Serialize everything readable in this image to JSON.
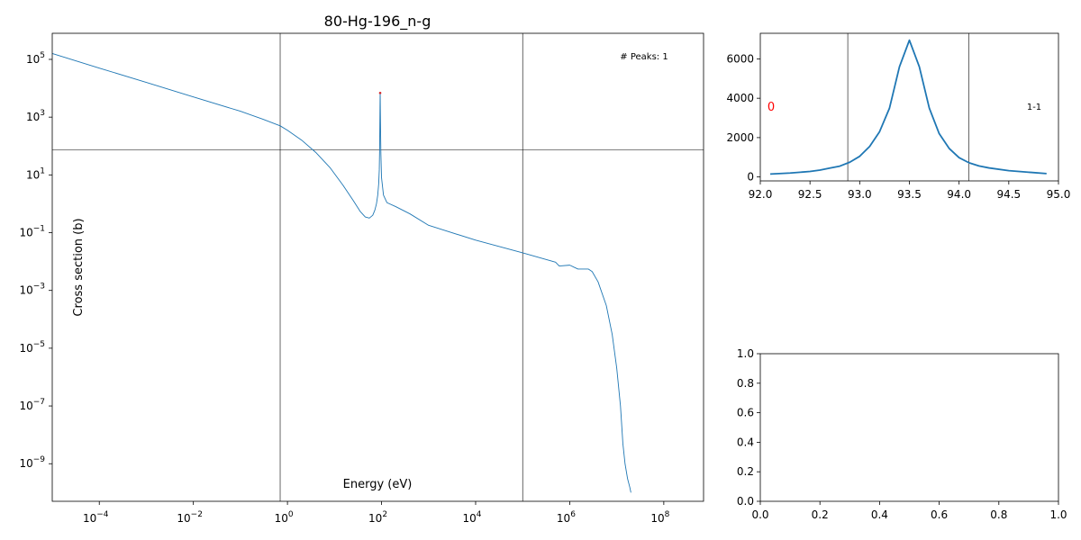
{
  "chart_data": [
    {
      "type": "line",
      "title": "80-Hg-196_n-g",
      "xlabel": "Energy (eV)",
      "ylabel": "Cross section (b)",
      "x_scale": "log",
      "y_scale": "log",
      "xlim": [
        1e-05,
        700000000.0
      ],
      "ylim": [
        5e-11,
        800000.0
      ],
      "x_ticks": [
        0.0001,
        0.01,
        1,
        100,
        10000,
        1000000,
        100000000
      ],
      "x_tick_labels": [
        "10^-4",
        "10^-2",
        "10^0",
        "10^2",
        "10^4",
        "10^6",
        "10^8"
      ],
      "y_ticks": [
        1e-09,
        1e-07,
        1e-05,
        0.001,
        0.1,
        10,
        1000,
        100000
      ],
      "y_tick_labels": [
        "10^-9",
        "10^-7",
        "10^-5",
        "10^-3",
        "10^-1",
        "10^1",
        "10^3",
        "10^5"
      ],
      "annotation": "# Peaks: 1",
      "line_color": "#1f77b4",
      "marker_color": "#d62728",
      "vlines": [
        0.7,
        100000
      ],
      "hline": 75,
      "peak_marker": {
        "x": 93.5,
        "y": 6900
      },
      "series": [
        {
          "x": [
            1e-05,
            0.0001,
            0.001,
            0.01,
            0.1,
            0.3,
            0.7,
            1,
            2,
            4,
            8,
            15,
            25,
            35,
            45,
            55,
            65,
            72,
            78,
            83,
            87,
            89.5,
            91,
            92,
            92.8,
            93.2,
            93.5,
            93.8,
            94.3,
            95.5,
            97,
            100,
            110,
            130,
            200,
            400,
            1000,
            10000,
            100000,
            500000,
            600000,
            1000000,
            1500000,
            2500000,
            3000000,
            4000000,
            6000000,
            8000000,
            10000000,
            12000000,
            13500000,
            15000000,
            17000000,
            19000000,
            20000000
          ],
          "y": [
            160000,
            50000,
            16000,
            5000,
            1600,
            850,
            500,
            350,
            160,
            60,
            18,
            4.5,
            1.3,
            0.55,
            0.35,
            0.32,
            0.4,
            0.6,
            1.0,
            2.0,
            5.0,
            15,
            80,
            500,
            2500,
            5000,
            6900,
            5000,
            2000,
            300,
            50,
            8,
            2.0,
            1.1,
            0.8,
            0.45,
            0.18,
            0.055,
            0.02,
            0.0095,
            0.007,
            0.0075,
            0.0055,
            0.0055,
            0.0045,
            0.002,
            0.0003,
            3e-05,
            2e-06,
            1e-07,
            5e-09,
            1e-09,
            3e-10,
            1.5e-10,
            1e-10
          ]
        }
      ]
    },
    {
      "type": "line",
      "title": "",
      "xlim": [
        92.0,
        95.0
      ],
      "ylim": [
        -200,
        7300
      ],
      "x_ticks": [
        92.0,
        92.5,
        93.0,
        93.5,
        94.0,
        94.5,
        95.0
      ],
      "x_tick_labels": [
        "92.0",
        "92.5",
        "93.0",
        "93.5",
        "94.0",
        "94.5",
        "95.0"
      ],
      "y_ticks": [
        0,
        2000,
        4000,
        6000
      ],
      "y_tick_labels": [
        "0",
        "2000",
        "4000",
        "6000"
      ],
      "vlines": [
        92.88,
        94.1
      ],
      "left_label": "0",
      "right_label": "1-1",
      "line_color": "#1f77b4",
      "series": [
        {
          "x": [
            92.1,
            92.3,
            92.5,
            92.6,
            92.7,
            92.8,
            92.9,
            93.0,
            93.1,
            93.2,
            93.3,
            93.4,
            93.5,
            93.6,
            93.7,
            93.8,
            93.9,
            94.0,
            94.1,
            94.2,
            94.3,
            94.5,
            94.7,
            94.88
          ],
          "y": [
            150,
            200,
            280,
            350,
            450,
            550,
            750,
            1050,
            1550,
            2300,
            3500,
            5600,
            6950,
            5600,
            3500,
            2200,
            1450,
            980,
            720,
            560,
            460,
            320,
            240,
            170
          ]
        }
      ]
    },
    {
      "type": "line",
      "title": "",
      "xlim": [
        0.0,
        1.0
      ],
      "ylim": [
        0.0,
        1.0
      ],
      "x_ticks": [
        0.0,
        0.2,
        0.4,
        0.6,
        0.8,
        1.0
      ],
      "x_tick_labels": [
        "0.0",
        "0.2",
        "0.4",
        "0.6",
        "0.8",
        "1.0"
      ],
      "y_ticks": [
        0.0,
        0.2,
        0.4,
        0.6,
        0.8,
        1.0
      ],
      "y_tick_labels": [
        "0.0",
        "0.2",
        "0.4",
        "0.6",
        "0.8",
        "1.0"
      ],
      "series": []
    }
  ]
}
